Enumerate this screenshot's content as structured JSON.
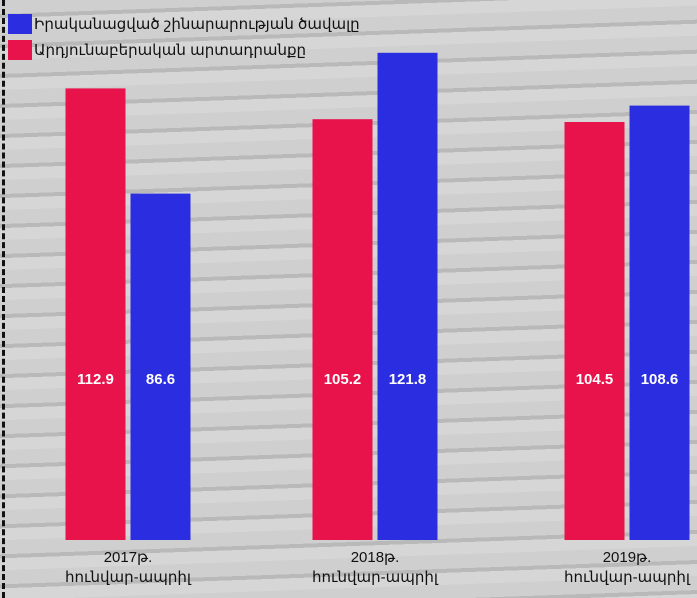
{
  "chart_data": {
    "type": "bar",
    "categories": [
      "2017թ.\nհունվար-ապրիլ",
      "2018թ.\nհունվար-ապրիլ",
      "2019թ.\nհունվար-ապրիլ"
    ],
    "series": [
      {
        "name": "Իրականացված շինարարության ծավալը",
        "color": "#2a2ee0",
        "values": [
          86.6,
          121.8,
          108.6
        ]
      },
      {
        "name": "Արդյունաբերական արտադրանքը",
        "color": "#e8134b",
        "values": [
          112.9,
          105.2,
          104.5
        ]
      }
    ],
    "ylim": [
      0,
      125
    ]
  }
}
